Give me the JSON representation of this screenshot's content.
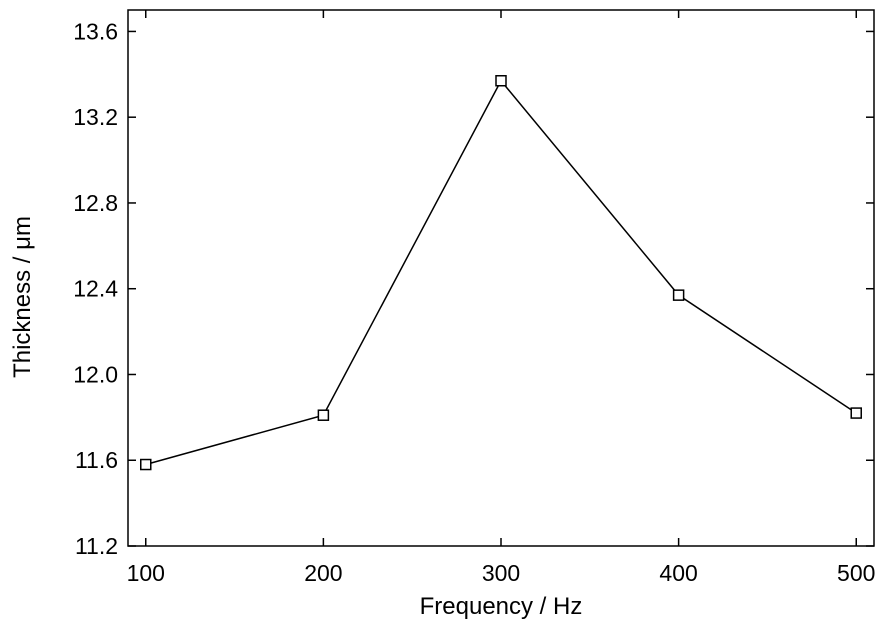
{
  "chart_data": {
    "type": "line",
    "title": "",
    "xlabel": "Frequency / Hz",
    "ylabel": "Thickness / μm",
    "x": [
      100,
      200,
      300,
      400,
      500
    ],
    "series": [
      {
        "values": [
          11.58,
          11.81,
          13.37,
          12.37,
          11.82
        ],
        "marker": "open-square",
        "color": "#000000"
      }
    ],
    "xlim": [
      90,
      510
    ],
    "ylim": [
      11.2,
      13.7
    ],
    "xticks": [
      100,
      200,
      300,
      400,
      500
    ],
    "xtick_labels": [
      "100",
      "200",
      "300",
      "400",
      "500"
    ],
    "yticks": [
      11.2,
      11.6,
      12.0,
      12.4,
      12.8,
      13.2,
      13.6
    ],
    "ytick_labels": [
      "11.2",
      "11.6",
      "12.0",
      "12.4",
      "12.8",
      "13.2",
      "13.6"
    ],
    "grid": false,
    "legend": "none"
  }
}
